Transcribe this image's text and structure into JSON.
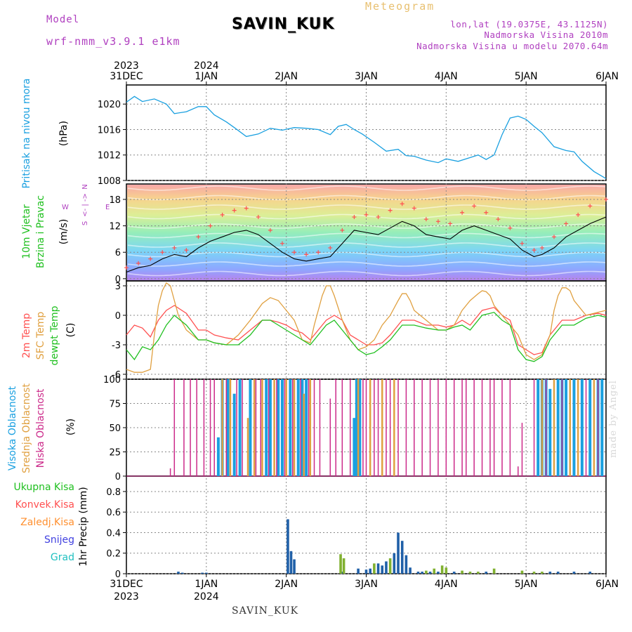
{
  "header": {
    "model_label": "Model",
    "model_name": "wrf-nmm_v3.9.1 e1km",
    "station": "SAVIN_KUK",
    "meteogram_label": "Meteogram",
    "lonlat": "lon,lat (19.0375E, 43.1125N)",
    "elevation": "Nadmorska Visina 2010m",
    "model_elevation": "Nadmorska Visina u modelu 2070.64m"
  },
  "footer": {
    "station": "SAVIN_KUK",
    "credit": "made by Angel"
  },
  "time_axis": {
    "ticks": [
      {
        "day": "31DEC",
        "year": "2023",
        "t": 0
      },
      {
        "day": "1JAN",
        "year": "2024",
        "t": 1
      },
      {
        "day": "2JAN",
        "year": "",
        "t": 2
      },
      {
        "day": "3JAN",
        "year": "",
        "t": 3
      },
      {
        "day": "4JAN",
        "year": "",
        "t": 4
      },
      {
        "day": "5JAN",
        "year": "",
        "t": 5
      },
      {
        "day": "6JAN",
        "year": "",
        "t": 6
      }
    ]
  },
  "colors": {
    "pressure": "#1aa0e0",
    "wind_mean": "#000000",
    "gust": "#ff5050",
    "temp2m": "#ff5050",
    "sfc": "#e0a040",
    "dewpt": "#20c020",
    "cloud_high": "#1aa0e0",
    "cloud_mid": "#e0a040",
    "cloud_low": "#cc2a8a",
    "precip_total": "#20c020",
    "precip_conv": "#ff5050",
    "precip_frz": "#ff9030",
    "precip_snow": "#4040e0",
    "precip_grad": "#20c0c0"
  },
  "chart_data": [
    {
      "type": "line",
      "panel": "pressure",
      "ylabel": "Pritisak na nivou mora",
      "unit": "(hPa)",
      "ylim": [
        1008,
        1023
      ],
      "yticks": [
        1008,
        1012,
        1016,
        1020
      ],
      "grid": true,
      "x": [
        0,
        0.1,
        0.2,
        0.35,
        0.5,
        0.6,
        0.75,
        0.9,
        1.0,
        1.1,
        1.25,
        1.35,
        1.5,
        1.65,
        1.8,
        1.95,
        2.1,
        2.25,
        2.4,
        2.55,
        2.65,
        2.75,
        2.85,
        2.95,
        3.1,
        3.25,
        3.4,
        3.5,
        3.6,
        3.75,
        3.9,
        4.0,
        4.15,
        4.3,
        4.4,
        4.5,
        4.6,
        4.7,
        4.8,
        4.9,
        5.0,
        5.1,
        5.2,
        5.35,
        5.5,
        5.6,
        5.7,
        5.85,
        6.0
      ],
      "values": [
        1020.3,
        1021.2,
        1020.4,
        1020.8,
        1020.0,
        1018.5,
        1018.8,
        1019.6,
        1019.6,
        1018.3,
        1017.2,
        1016.3,
        1014.9,
        1015.3,
        1016.2,
        1015.9,
        1016.3,
        1016.2,
        1016.0,
        1015.2,
        1016.5,
        1016.8,
        1016.0,
        1015.3,
        1014.0,
        1012.6,
        1012.9,
        1011.9,
        1011.8,
        1011.2,
        1010.8,
        1011.4,
        1011.0,
        1011.6,
        1012.0,
        1011.3,
        1012.0,
        1015.2,
        1017.8,
        1018.1,
        1017.6,
        1016.5,
        1015.5,
        1013.3,
        1012.7,
        1012.5,
        1011.0,
        1009.4,
        1008.3
      ]
    },
    {
      "type": "line",
      "panel": "wind",
      "ylabel": "10m Vjetar Brzina i Pravac",
      "unit": "(m/s)",
      "ylim": [
        -0.5,
        21.5
      ],
      "yticks": [
        0,
        6,
        12,
        18
      ],
      "grid": true,
      "compass": {
        "west": "W",
        "north": "N",
        "east": "E",
        "south": "S",
        "arrow": "<- | ->"
      },
      "series": [
        {
          "role": "mean",
          "x": [
            0,
            0.15,
            0.3,
            0.45,
            0.6,
            0.75,
            0.9,
            1.05,
            1.2,
            1.35,
            1.5,
            1.65,
            1.8,
            1.95,
            2.1,
            2.25,
            2.4,
            2.55,
            2.7,
            2.85,
            3.0,
            3.15,
            3.3,
            3.45,
            3.6,
            3.75,
            3.9,
            4.05,
            4.2,
            4.35,
            4.5,
            4.65,
            4.8,
            4.95,
            5.1,
            5.2,
            5.35,
            5.5,
            5.65,
            5.8,
            6.0
          ],
          "values": [
            1.5,
            2.5,
            3.0,
            4.5,
            5.5,
            5.0,
            7.0,
            8.5,
            9.5,
            10.5,
            11.0,
            10.0,
            8.0,
            6.0,
            4.5,
            4.0,
            4.5,
            5.0,
            8.0,
            11.0,
            10.5,
            10.0,
            11.5,
            13.0,
            12.0,
            10.0,
            9.5,
            9.0,
            11.0,
            12.0,
            11.0,
            10.0,
            9.0,
            6.5,
            5.0,
            5.5,
            7.0,
            9.5,
            11.0,
            12.5,
            14.0
          ]
        },
        {
          "role": "gust",
          "x": [
            0,
            0.15,
            0.3,
            0.45,
            0.6,
            0.75,
            0.9,
            1.05,
            1.2,
            1.35,
            1.5,
            1.65,
            1.8,
            1.95,
            2.1,
            2.25,
            2.4,
            2.55,
            2.7,
            2.85,
            3.0,
            3.15,
            3.3,
            3.45,
            3.6,
            3.75,
            3.9,
            4.05,
            4.2,
            4.35,
            4.5,
            4.65,
            4.8,
            4.95,
            5.1,
            5.2,
            5.35,
            5.5,
            5.65,
            5.8,
            6.0
          ],
          "values": [
            2.5,
            3.5,
            4.5,
            6.0,
            7.0,
            6.5,
            9.5,
            12.0,
            14.5,
            15.5,
            16.0,
            14.0,
            11.0,
            8.0,
            6.0,
            5.5,
            6.0,
            7.0,
            11.0,
            14.0,
            14.5,
            14.0,
            15.5,
            17.0,
            16.0,
            13.5,
            13.0,
            12.5,
            15.0,
            16.5,
            15.0,
            13.5,
            11.5,
            8.0,
            6.5,
            7.0,
            9.5,
            12.5,
            14.5,
            16.5,
            18.0
          ]
        }
      ]
    },
    {
      "type": "line",
      "panel": "temperature",
      "ylabel": "2m Temp / SFC Temp / dewpt Temp",
      "unit": "(C)",
      "ylim": [
        -6.5,
        3.5
      ],
      "yticks": [
        -6,
        -3,
        0,
        3
      ],
      "grid": true,
      "series": [
        {
          "name": "2m Temp",
          "x": [
            0,
            0.1,
            0.2,
            0.3,
            0.4,
            0.5,
            0.6,
            0.75,
            0.9,
            1.0,
            1.1,
            1.25,
            1.4,
            1.55,
            1.7,
            1.8,
            1.9,
            2.0,
            2.1,
            2.2,
            2.3,
            2.4,
            2.5,
            2.6,
            2.7,
            2.8,
            2.9,
            3.0,
            3.1,
            3.2,
            3.3,
            3.45,
            3.6,
            3.75,
            3.9,
            4.0,
            4.1,
            4.2,
            4.3,
            4.45,
            4.6,
            4.7,
            4.8,
            4.9,
            5.0,
            5.1,
            5.2,
            5.3,
            5.45,
            5.6,
            5.75,
            5.9,
            6.0
          ],
          "values": [
            -2.0,
            -1.0,
            -1.3,
            -2.2,
            -0.5,
            0.5,
            1.0,
            0.2,
            -1.5,
            -1.5,
            -2.0,
            -2.3,
            -2.5,
            -1.5,
            -0.5,
            -0.5,
            -0.7,
            -1.0,
            -1.5,
            -1.8,
            -2.5,
            -1.5,
            -0.5,
            0.0,
            -0.5,
            -2.0,
            -2.5,
            -3.0,
            -3.0,
            -2.8,
            -2.0,
            -0.5,
            -0.5,
            -1.0,
            -1.0,
            -1.2,
            -1.0,
            -0.5,
            -1.0,
            0.5,
            0.8,
            0.0,
            -0.5,
            -3.0,
            -3.5,
            -4.0,
            -3.8,
            -2.0,
            -0.5,
            -0.5,
            0.0,
            0.2,
            0.0
          ]
        },
        {
          "name": "SFC Temp",
          "x": [
            0,
            0.1,
            0.2,
            0.3,
            0.35,
            0.4,
            0.45,
            0.5,
            0.55,
            0.6,
            0.65,
            0.75,
            0.9,
            1.0,
            1.1,
            1.25,
            1.4,
            1.55,
            1.7,
            1.8,
            1.9,
            2.0,
            2.1,
            2.2,
            2.3,
            2.35,
            2.4,
            2.45,
            2.5,
            2.55,
            2.6,
            2.7,
            2.8,
            2.9,
            3.0,
            3.1,
            3.2,
            3.3,
            3.4,
            3.45,
            3.5,
            3.55,
            3.6,
            3.75,
            3.9,
            4.0,
            4.1,
            4.2,
            4.3,
            4.4,
            4.45,
            4.5,
            4.55,
            4.6,
            4.7,
            4.8,
            4.9,
            5.0,
            5.1,
            5.2,
            5.3,
            5.35,
            5.4,
            5.45,
            5.5,
            5.55,
            5.6,
            5.75,
            5.9,
            6.0
          ],
          "values": [
            -5.5,
            -5.8,
            -5.8,
            -5.5,
            -2.0,
            1.0,
            2.5,
            3.3,
            3.0,
            1.5,
            0.0,
            -1.5,
            -2.5,
            -2.5,
            -2.8,
            -3.0,
            -2.0,
            -0.5,
            1.2,
            1.8,
            1.5,
            0.5,
            -0.5,
            -2.5,
            -2.8,
            -1.0,
            0.5,
            2.0,
            3.0,
            3.0,
            2.0,
            -0.5,
            -2.5,
            -3.5,
            -3.2,
            -2.5,
            -1.0,
            0.0,
            1.5,
            2.2,
            2.2,
            1.5,
            0.5,
            -0.5,
            -1.5,
            -1.5,
            -1.0,
            0.5,
            1.5,
            2.2,
            2.5,
            2.4,
            2.0,
            1.0,
            0.0,
            -1.0,
            -2.0,
            -4.0,
            -4.5,
            -4.0,
            -2.0,
            0.5,
            2.0,
            2.8,
            2.8,
            2.5,
            1.5,
            0.0,
            0.3,
            0.5
          ]
        },
        {
          "name": "dewpt Temp",
          "x": [
            0,
            0.1,
            0.2,
            0.3,
            0.4,
            0.5,
            0.6,
            0.75,
            0.9,
            1.0,
            1.1,
            1.25,
            1.4,
            1.55,
            1.7,
            1.8,
            1.9,
            2.0,
            2.1,
            2.2,
            2.3,
            2.4,
            2.5,
            2.6,
            2.7,
            2.8,
            2.9,
            3.0,
            3.1,
            3.2,
            3.3,
            3.45,
            3.6,
            3.75,
            3.9,
            4.0,
            4.1,
            4.2,
            4.3,
            4.45,
            4.6,
            4.7,
            4.8,
            4.9,
            5.0,
            5.1,
            5.2,
            5.3,
            5.45,
            5.6,
            5.75,
            5.9,
            6.0
          ],
          "values": [
            -3.5,
            -4.5,
            -3.2,
            -3.5,
            -2.5,
            -1.0,
            0.0,
            -1.0,
            -2.5,
            -2.5,
            -2.8,
            -3.0,
            -3.0,
            -2.0,
            -0.5,
            -0.5,
            -1.0,
            -1.5,
            -2.0,
            -2.5,
            -3.0,
            -2.0,
            -1.0,
            -0.5,
            -1.5,
            -2.5,
            -3.5,
            -4.0,
            -3.8,
            -3.2,
            -2.5,
            -1.0,
            -1.0,
            -1.3,
            -1.5,
            -1.5,
            -1.2,
            -1.0,
            -1.5,
            0.0,
            0.3,
            -0.5,
            -1.0,
            -3.5,
            -4.5,
            -4.7,
            -4.2,
            -2.5,
            -1.0,
            -1.0,
            -0.3,
            0.0,
            -0.2
          ]
        }
      ]
    },
    {
      "type": "bar",
      "panel": "clouds",
      "ylabel": "Visoka Oblacnost / Srednja Oblacnost / Niska Oblacnost",
      "unit": "(%)",
      "ylim": [
        0,
        100
      ],
      "yticks": [
        0,
        25,
        50,
        75,
        100
      ],
      "grid": true,
      "series": [
        {
          "name": "Visoka Oblacnost",
          "x": [
            1.15,
            1.2,
            1.27,
            1.35,
            1.42,
            1.55,
            1.75,
            1.8,
            1.9,
            1.95,
            2.05,
            2.15,
            2.2,
            2.25,
            2.85,
            2.88,
            2.92,
            5.15,
            5.2,
            5.25,
            5.3,
            5.4,
            5.45,
            5.5,
            5.6,
            5.7,
            5.8,
            5.9,
            5.95
          ],
          "values": [
            40,
            100,
            100,
            85,
            100,
            100,
            100,
            100,
            100,
            100,
            100,
            100,
            100,
            100,
            60,
            100,
            100,
            100,
            100,
            100,
            90,
            100,
            100,
            100,
            100,
            100,
            100,
            100,
            100
          ]
        },
        {
          "name": "Srednja Oblacnost",
          "x": [
            1.2,
            1.3,
            1.52,
            1.6,
            1.7,
            1.85,
            2.0,
            2.1,
            2.22,
            2.3,
            2.9,
            3.05,
            3.2,
            3.35,
            5.2,
            5.35,
            5.55,
            5.65,
            5.85
          ],
          "values": [
            100,
            100,
            60,
            100,
            100,
            100,
            100,
            100,
            85,
            100,
            100,
            100,
            100,
            100,
            100,
            100,
            100,
            100,
            100
          ]
        },
        {
          "name": "Niska Oblacnost",
          "x": [
            0.55,
            0.6,
            0.72,
            0.8,
            0.88,
            0.97,
            1.05,
            1.1,
            1.25,
            1.38,
            1.45,
            1.62,
            1.68,
            1.78,
            1.88,
            1.98,
            2.08,
            2.18,
            2.28,
            2.35,
            2.42,
            2.55,
            2.62,
            2.7,
            2.8,
            2.96,
            3.0,
            3.1,
            3.15,
            3.25,
            3.3,
            3.4,
            3.5,
            3.6,
            3.7,
            3.8,
            3.9,
            4.0,
            4.1,
            4.2,
            4.25,
            4.35,
            4.45,
            4.55,
            4.6,
            4.7,
            4.8,
            4.9,
            4.95,
            5.1,
            5.25,
            5.45,
            5.75,
            5.9
          ],
          "values": [
            8,
            100,
            100,
            100,
            100,
            100,
            100,
            100,
            100,
            100,
            100,
            100,
            100,
            100,
            100,
            100,
            100,
            100,
            100,
            100,
            100,
            80,
            100,
            100,
            100,
            100,
            100,
            100,
            100,
            100,
            100,
            100,
            100,
            100,
            100,
            100,
            100,
            100,
            100,
            100,
            100,
            100,
            100,
            100,
            100,
            100,
            100,
            10,
            55,
            100,
            100,
            100,
            100,
            100
          ]
        }
      ]
    },
    {
      "type": "bar",
      "panel": "precipitation",
      "ylabel": "1hr Precip",
      "unit": "(mm)",
      "ylim": [
        0,
        0.95
      ],
      "yticks": [
        0,
        0.2,
        0.4,
        0.6,
        0.8
      ],
      "grid": true,
      "legend": [
        "Ukupna Kisa",
        "Konvek.Kisa",
        "Zaledj.Kisa",
        "Snijeg",
        "Grad"
      ],
      "series": [
        {
          "name": "Snijeg",
          "x": [
            0.65,
            0.7,
            0.95,
            1.0,
            2.02,
            2.06,
            2.1,
            2.7,
            2.9,
            3.0,
            3.05,
            3.15,
            3.2,
            3.25,
            3.35,
            3.4,
            3.45,
            3.5,
            3.55,
            3.65,
            3.7,
            3.8,
            3.9,
            4.1,
            4.5,
            5.3,
            5.4,
            5.6,
            5.8
          ],
          "values": [
            0.02,
            0.01,
            0.01,
            0.01,
            0.53,
            0.22,
            0.14,
            0.02,
            0.05,
            0.04,
            0.05,
            0.1,
            0.08,
            0.12,
            0.2,
            0.4,
            0.32,
            0.18,
            0.06,
            0.02,
            0.02,
            0.02,
            0.02,
            0.02,
            0.02,
            0.02,
            0.02,
            0.02,
            0.02
          ]
        },
        {
          "name": "Ukupna Kisa",
          "x": [
            2.68,
            2.72,
            3.1,
            3.3,
            3.75,
            3.85,
            3.95,
            4.0,
            4.2,
            4.3,
            4.4,
            4.6,
            4.95,
            5.1,
            5.2
          ],
          "values": [
            0.19,
            0.15,
            0.1,
            0.15,
            0.03,
            0.05,
            0.08,
            0.06,
            0.03,
            0.02,
            0.02,
            0.05,
            0.03,
            0.02,
            0.02
          ]
        }
      ]
    }
  ]
}
